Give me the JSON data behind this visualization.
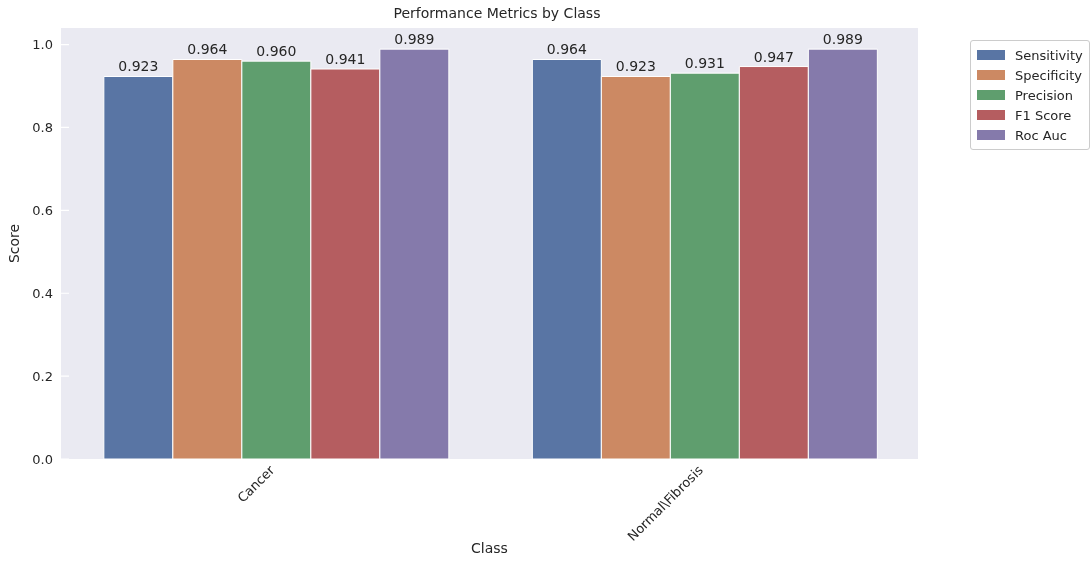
{
  "chart_data": {
    "type": "bar",
    "title": "Performance Metrics by Class",
    "xlabel": "Class",
    "ylabel": "Score",
    "categories": [
      "Cancer",
      "Normal\\Fibrosis"
    ],
    "series": [
      {
        "name": "Sensitivity",
        "color": "#5975a4",
        "values": [
          0.923,
          0.964
        ],
        "value_labels": [
          "0.923",
          "0.964"
        ]
      },
      {
        "name": "Specificity",
        "color": "#cc8963",
        "values": [
          0.964,
          0.923
        ],
        "value_labels": [
          "0.964",
          "0.923"
        ]
      },
      {
        "name": "Precision",
        "color": "#5f9e6e",
        "values": [
          0.96,
          0.931
        ],
        "value_labels": [
          "0.960",
          "0.931"
        ]
      },
      {
        "name": "F1 Score",
        "color": "#b55d60",
        "values": [
          0.941,
          0.947
        ],
        "value_labels": [
          "0.941",
          "0.947"
        ]
      },
      {
        "name": "Roc Auc",
        "color": "#857aab",
        "values": [
          0.989,
          0.989
        ],
        "value_labels": [
          "0.989",
          "0.989"
        ]
      }
    ],
    "ylim": [
      0,
      1.04
    ],
    "yticks": [
      {
        "value": 0,
        "label": "0.0"
      },
      {
        "value": 0.2,
        "label": "0.2"
      },
      {
        "value": 0.4,
        "label": "0.4"
      },
      {
        "value": 0.6,
        "label": "0.6"
      },
      {
        "value": 0.8,
        "label": "0.8"
      },
      {
        "value": 1,
        "label": "1.0"
      }
    ],
    "grid": "y",
    "legend": "top right"
  }
}
